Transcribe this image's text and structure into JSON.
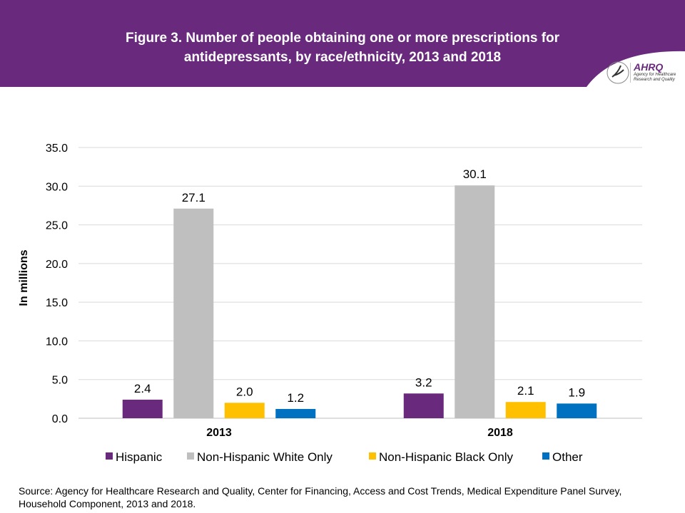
{
  "header": {
    "title_line1": "Figure 3. Number of people obtaining one or more prescriptions for",
    "title_line2": "antidepressants, by race/ethnicity, 2013 and 2018",
    "logo": "AHRQ Agency for Healthcare Research and Quality",
    "bg": "#692a7d"
  },
  "chart_data": {
    "type": "bar",
    "title": "Figure 3. Number of people obtaining one or more prescriptions for antidepressants, by race/ethnicity, 2013 and 2018",
    "categories": [
      "2013",
      "2018"
    ],
    "ylabel": "In millions",
    "xlabel": "",
    "ylim": [
      0,
      35
    ],
    "yticks": [
      "0.0",
      "5.0",
      "10.0",
      "15.0",
      "20.0",
      "25.0",
      "30.0",
      "35.0"
    ],
    "grid": true,
    "legend": "bottom",
    "series": [
      {
        "name": "Hispanic",
        "color": "#692a7d",
        "values": [
          2.4,
          3.2
        ],
        "labels": [
          "2.4",
          "3.2"
        ]
      },
      {
        "name": "Non-Hispanic White Only",
        "color": "#bfbfbf",
        "values": [
          27.1,
          30.1
        ],
        "labels": [
          "27.1",
          "30.1"
        ]
      },
      {
        "name": "Non-Hispanic Black Only",
        "color": "#ffc000",
        "values": [
          2.0,
          2.1
        ],
        "labels": [
          "2.0",
          "2.1"
        ]
      },
      {
        "name": "Other",
        "color": "#0070c0",
        "values": [
          1.2,
          1.9
        ],
        "labels": [
          "1.2",
          "1.9"
        ]
      }
    ]
  },
  "source": "Source: Agency for Healthcare Research and Quality, Center for Financing, Access and Cost Trends, Medical Expenditure Panel Survey, Household Component, 2013 and 2018."
}
